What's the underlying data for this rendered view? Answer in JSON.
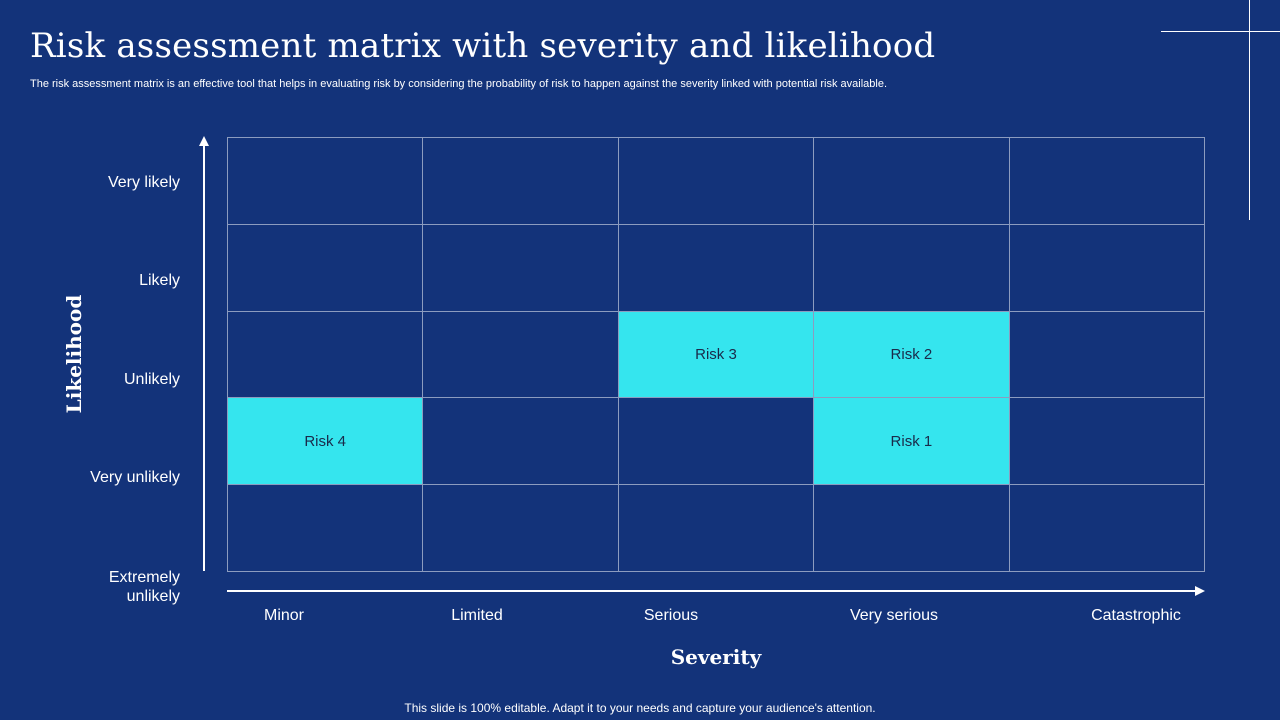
{
  "title": "Risk assessment matrix with severity and likelihood",
  "subtitle": "The risk assessment matrix is an effective tool that helps in evaluating risk by considering the probability of risk to happen against the severity linked with potential risk available.",
  "y_axis_title": "Likelihood",
  "x_axis_title": "Severity",
  "likelihood_levels": [
    "Very likely",
    "Likely",
    "Unlikely",
    "Very unlikely",
    "Extremely unlikely"
  ],
  "severity_levels": [
    "Minor",
    "Limited",
    "Serious",
    "Very serious",
    "Catastrophic"
  ],
  "risks": [
    {
      "label": "Risk 1",
      "severity": "Very serious",
      "row": 4
    },
    {
      "label": "Risk 2",
      "severity": "Very serious",
      "row": 3
    },
    {
      "label": "Risk 3",
      "severity": "Serious",
      "row": 3
    },
    {
      "label": "Risk 4",
      "severity": "Minor",
      "row": 4
    }
  ],
  "colors": {
    "background": "#13337a",
    "highlight": "#35e5ee",
    "grid_line": "#8c9cbf"
  },
  "footer": "This slide is 100% editable. Adapt it to your needs and capture your audience's attention."
}
